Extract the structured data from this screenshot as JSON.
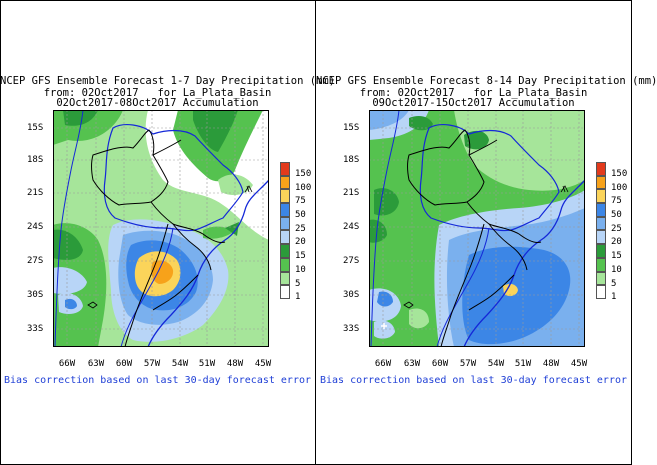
{
  "panels": [
    {
      "title_line1": "NCEP GFS Ensemble Forecast 1-7 Day Precipitation (mm)",
      "title_line2": "from: 02Oct2017   for La_Plata_Basin",
      "title_line3": "02Oct2017-08Oct2017 Accumulation",
      "note": "Bias correction based on last 30-day forecast error"
    },
    {
      "title_line1": "NCEP GFS Ensemble Forecast 8-14 Day Precipitation (mm)",
      "title_line2": "from: 02Oct2017   for La_Plata_Basin",
      "title_line3": "09Oct2017-15Oct2017 Accumulation",
      "note": "Bias correction based on last 30-day forecast error"
    }
  ],
  "axes": {
    "lat_labels": [
      "15S",
      "18S",
      "21S",
      "24S",
      "27S",
      "30S",
      "33S"
    ],
    "lon_labels": [
      "66W",
      "63W",
      "60W",
      "57W",
      "54W",
      "51W",
      "48W",
      "45W"
    ]
  },
  "legend": {
    "levels": [
      "150",
      "100",
      "75",
      "50",
      "25",
      "20",
      "15",
      "10",
      "5",
      "1"
    ],
    "colors": [
      "#e23a1c",
      "#f7a21a",
      "#fbd45a",
      "#3c86e6",
      "#7ab0ee",
      "#b8d5f7",
      "#2b9b3a",
      "#55c24f",
      "#a6e59a",
      "#ffffff"
    ]
  },
  "colors": {
    "water_blue": "#1428d8",
    "note_blue": "#1f3fd6"
  }
}
